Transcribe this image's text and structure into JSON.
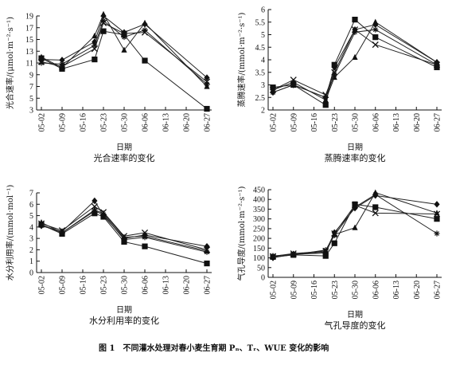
{
  "figure_caption": "图 1　不同灌水处理对春小麦生育期 Pₙ、Tᵣ、WUE 变化的影响",
  "chart_data": [
    {
      "type": "line",
      "title": "光合速率的变化",
      "xlabel": "日期",
      "ylabel": "光合速率/(μmol·m⁻²·s⁻¹)",
      "categories": [
        "05-02",
        "05-09",
        "05-16",
        "05-23",
        "05-30",
        "06-06",
        "06-13",
        "06-20",
        "06-27"
      ],
      "yticks": [
        3,
        5,
        7,
        9,
        11,
        13,
        15,
        17,
        19
      ],
      "ylim": [
        3,
        19
      ],
      "series": [
        {
          "marker": "square",
          "x": [
            "05-02",
            "05-09",
            "05-20",
            "05-23",
            "05-30",
            "06-06",
            "06-27"
          ],
          "y": [
            11.8,
            10.0,
            11.6,
            16.4,
            15.8,
            11.4,
            3.2
          ]
        },
        {
          "marker": "diamond",
          "x": [
            "05-02",
            "05-09",
            "05-20",
            "05-23",
            "05-30",
            "06-06",
            "06-27"
          ],
          "y": [
            11.6,
            11.5,
            14.6,
            19.0,
            16.2,
            17.6,
            8.5
          ]
        },
        {
          "marker": "triangle",
          "x": [
            "05-02",
            "05-09",
            "05-20",
            "05-23",
            "05-30",
            "06-06",
            "06-27"
          ],
          "y": [
            12.0,
            10.2,
            15.6,
            19.3,
            13.2,
            17.8,
            7.0
          ]
        },
        {
          "marker": "x",
          "x": [
            "05-02",
            "05-09",
            "05-20",
            "05-23",
            "05-30",
            "06-06",
            "06-27"
          ],
          "y": [
            11.2,
            10.4,
            13.4,
            17.8,
            16.0,
            16.2,
            7.8
          ]
        },
        {
          "marker": "star",
          "x": [
            "05-02",
            "05-09",
            "05-20",
            "05-23",
            "05-30",
            "06-06",
            "06-27"
          ],
          "y": [
            11.0,
            10.8,
            14.0,
            18.2,
            15.4,
            16.6,
            7.4
          ]
        }
      ]
    },
    {
      "type": "line",
      "title": "蒸腾速率的变化",
      "xlabel": "日期",
      "ylabel": "蒸腾速率/(mmol·m⁻²·s⁻¹)",
      "categories": [
        "05-02",
        "05-09",
        "05-16",
        "05-23",
        "05-30",
        "06-06",
        "06-13",
        "06-20",
        "06-27"
      ],
      "yticks": [
        2.0,
        2.5,
        3.0,
        3.5,
        4.0,
        4.5,
        5.0,
        5.5,
        6.0
      ],
      "ylim": [
        2.0,
        6.0
      ],
      "series": [
        {
          "marker": "square",
          "x": [
            "05-02",
            "05-09",
            "05-20",
            "05-23",
            "05-30",
            "06-06",
            "06-27"
          ],
          "y": [
            2.9,
            3.0,
            2.2,
            3.8,
            5.6,
            4.9,
            3.7
          ]
        },
        {
          "marker": "diamond",
          "x": [
            "05-02",
            "05-09",
            "05-20",
            "05-23",
            "05-30",
            "06-06",
            "06-27"
          ],
          "y": [
            2.7,
            3.0,
            2.5,
            3.7,
            5.2,
            5.4,
            3.9
          ]
        },
        {
          "marker": "triangle",
          "x": [
            "05-02",
            "05-09",
            "05-20",
            "05-23",
            "05-30",
            "06-06",
            "06-27"
          ],
          "y": [
            2.8,
            3.1,
            2.4,
            3.3,
            4.1,
            5.5,
            3.9
          ]
        },
        {
          "marker": "x",
          "x": [
            "05-02",
            "05-09",
            "05-20",
            "05-23",
            "05-30",
            "06-06",
            "06-27"
          ],
          "y": [
            2.8,
            3.2,
            2.6,
            3.5,
            5.2,
            4.6,
            3.8
          ]
        },
        {
          "marker": "star",
          "x": [
            "05-02",
            "05-09",
            "05-20",
            "05-23",
            "05-30",
            "06-06",
            "06-27"
          ],
          "y": [
            2.7,
            3.0,
            2.5,
            3.4,
            5.1,
            5.2,
            3.8
          ]
        }
      ]
    },
    {
      "type": "line",
      "title": "水分利用率的变化",
      "xlabel": "日期",
      "ylabel": "水分利用率/(mmol·mol⁻¹)",
      "categories": [
        "05-02",
        "05-09",
        "05-16",
        "05-23",
        "05-30",
        "06-06",
        "06-13",
        "06-20",
        "06-27"
      ],
      "yticks": [
        0,
        1,
        2,
        3,
        4,
        5,
        6,
        7
      ],
      "ylim": [
        0,
        7
      ],
      "series": [
        {
          "marker": "square",
          "x": [
            "05-02",
            "05-09",
            "05-20",
            "05-23",
            "05-30",
            "06-06",
            "06-20",
            "06-27"
          ],
          "y": [
            4.2,
            3.4,
            5.2,
            4.9,
            2.7,
            2.3,
            null,
            0.8
          ]
        },
        {
          "marker": "diamond",
          "x": [
            "05-02",
            "05-09",
            "05-20",
            "05-23",
            "05-30",
            "06-06",
            "06-20",
            "06-27"
          ],
          "y": [
            4.1,
            3.6,
            6.3,
            5.0,
            3.0,
            3.3,
            null,
            2.3
          ]
        },
        {
          "marker": "triangle",
          "x": [
            "05-02",
            "05-09",
            "05-20",
            "05-23",
            "05-30",
            "06-06",
            "06-20",
            "06-27"
          ],
          "y": [
            4.4,
            3.5,
            5.5,
            5.2,
            3.1,
            3.2,
            null,
            1.9
          ]
        },
        {
          "marker": "x",
          "x": [
            "05-02",
            "05-09",
            "05-20",
            "05-23",
            "05-30",
            "06-06",
            "06-20",
            "06-27"
          ],
          "y": [
            4.3,
            3.7,
            5.8,
            5.3,
            3.2,
            3.5,
            null,
            2.0
          ]
        },
        {
          "marker": "star",
          "x": [
            "05-02",
            "05-09",
            "05-20",
            "05-23",
            "05-30",
            "06-06",
            "06-20",
            "06-27"
          ],
          "y": [
            4.2,
            3.5,
            5.4,
            5.1,
            2.9,
            3.1,
            null,
            1.8
          ]
        }
      ]
    },
    {
      "type": "line",
      "title": "气孔导度的变化",
      "xlabel": "日期",
      "ylabel": "气孔导度/(mmol·m⁻²·s⁻¹)",
      "categories": [
        "05-02",
        "05-09",
        "05-16",
        "05-23",
        "05-30",
        "06-06",
        "06-13",
        "06-20",
        "06-27"
      ],
      "yticks": [
        0,
        50,
        100,
        150,
        200,
        250,
        300,
        350,
        400,
        450
      ],
      "ylim": [
        0,
        450
      ],
      "series": [
        {
          "marker": "square",
          "x": [
            "05-02",
            "05-09",
            "05-20",
            "05-23",
            "05-30",
            "06-06",
            "06-27"
          ],
          "y": [
            105,
            115,
            110,
            175,
            375,
            360,
            300
          ]
        },
        {
          "marker": "diamond",
          "x": [
            "05-02",
            "05-09",
            "05-20",
            "05-23",
            "05-30",
            "06-06",
            "06-27"
          ],
          "y": [
            100,
            120,
            130,
            230,
            355,
            420,
            375
          ]
        },
        {
          "marker": "triangle",
          "x": [
            "05-02",
            "05-09",
            "05-20",
            "05-23",
            "05-30",
            "06-06",
            "06-27"
          ],
          "y": [
            110,
            118,
            125,
            220,
            255,
            435,
            330
          ]
        },
        {
          "marker": "x",
          "x": [
            "05-02",
            "05-09",
            "05-20",
            "05-23",
            "05-30",
            "06-06",
            "06-27"
          ],
          "y": [
            108,
            122,
            135,
            225,
            370,
            330,
            325
          ]
        },
        {
          "marker": "star",
          "x": [
            "05-02",
            "05-09",
            "05-20",
            "05-23",
            "05-30",
            "06-06",
            "06-27"
          ],
          "y": [
            102,
            116,
            140,
            215,
            360,
            425,
            225
          ]
        }
      ]
    }
  ]
}
